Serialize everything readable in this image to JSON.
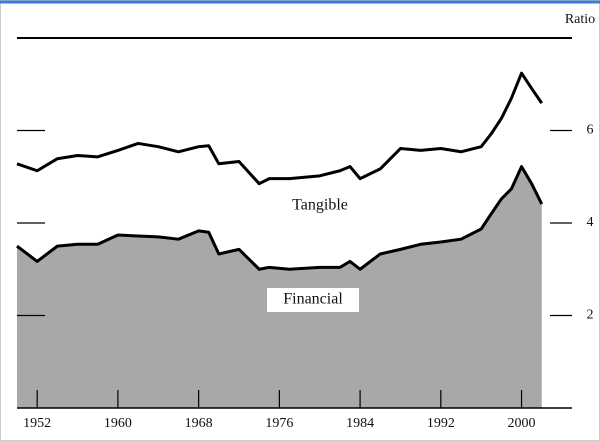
{
  "chart_data": {
    "type": "line",
    "y_axis_label": "Ratio",
    "x": [
      1950,
      1952,
      1954,
      1956,
      1958,
      1960,
      1962,
      1964,
      1966,
      1968,
      1969,
      1970,
      1972,
      1974,
      1975,
      1977,
      1980,
      1982,
      1983,
      1984,
      1986,
      1988,
      1990,
      1992,
      1994,
      1996,
      1997,
      1998,
      1999,
      2000,
      2001,
      2002
    ],
    "series": [
      {
        "name": "Tangible",
        "color": "#000000",
        "values": [
          5.28,
          5.13,
          5.39,
          5.46,
          5.43,
          5.57,
          5.72,
          5.65,
          5.54,
          5.65,
          5.67,
          5.28,
          5.33,
          4.85,
          4.96,
          4.96,
          5.02,
          5.13,
          5.22,
          4.96,
          5.17,
          5.61,
          5.57,
          5.61,
          5.54,
          5.65,
          5.93,
          6.26,
          6.7,
          7.24,
          6.91,
          6.59
        ]
      },
      {
        "name": "Financial",
        "color": "#000000",
        "area_color": "#a8a8a8",
        "values": [
          3.5,
          3.17,
          3.5,
          3.54,
          3.54,
          3.74,
          3.72,
          3.7,
          3.65,
          3.83,
          3.8,
          3.33,
          3.43,
          3.0,
          3.04,
          3.0,
          3.04,
          3.04,
          3.17,
          3.0,
          3.33,
          3.43,
          3.54,
          3.59,
          3.65,
          3.87,
          4.2,
          4.52,
          4.74,
          5.22,
          4.85,
          4.41
        ]
      }
    ],
    "xlim": [
      1950,
      2005
    ],
    "xticks": [
      1952,
      1960,
      1968,
      1976,
      1984,
      1992,
      2000
    ],
    "ylim": [
      0,
      8
    ],
    "yticks": [
      2,
      4,
      6
    ]
  }
}
